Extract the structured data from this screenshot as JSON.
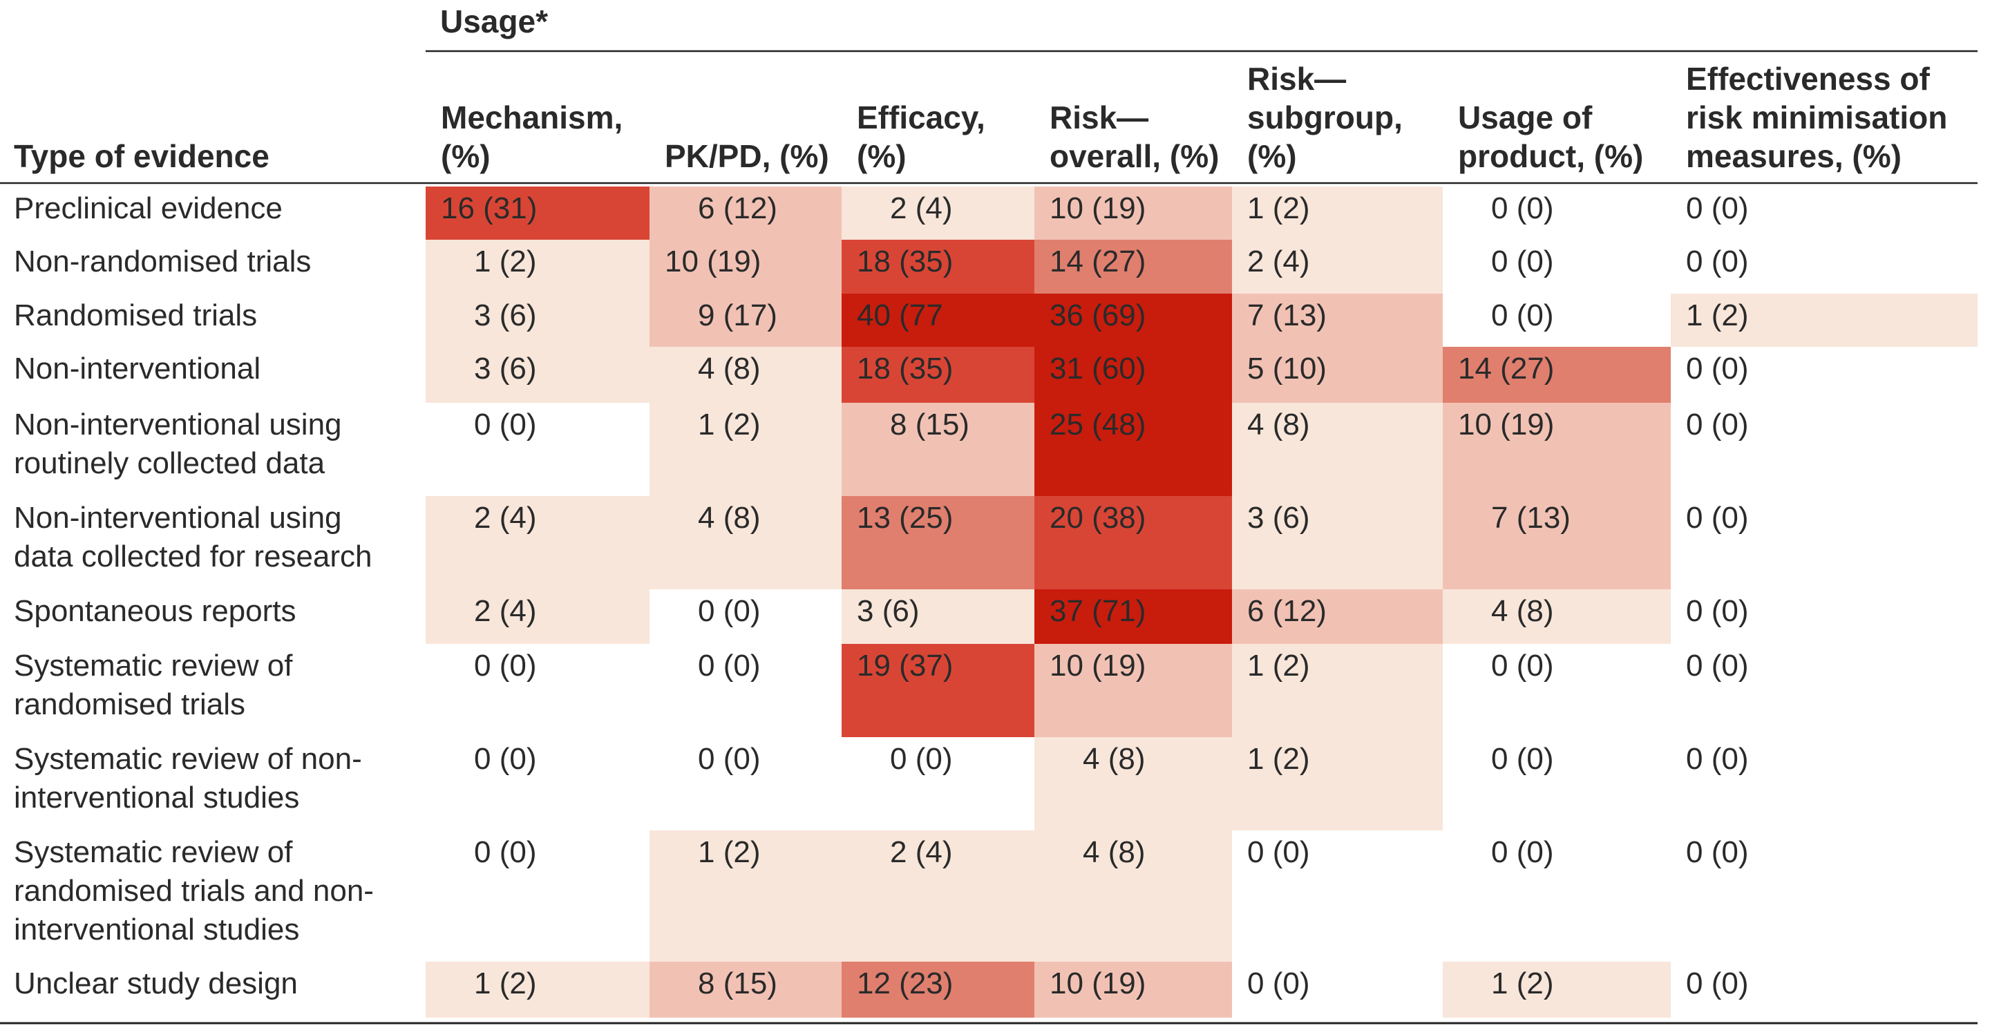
{
  "chart_data": {
    "type": "heatmap",
    "group_header": "Usage*",
    "row_header": "Type of evidence",
    "columns": [
      [
        "Mechanism,",
        "(%)"
      ],
      [
        "PK/PD, (%)"
      ],
      [
        "Efficacy,",
        "(%)"
      ],
      [
        "Risk—",
        "overall, (%)"
      ],
      [
        "Risk—",
        "subgroup,",
        "(%)"
      ],
      [
        "Usage of",
        "product, (%)"
      ],
      [
        "Effectiveness of",
        "risk minimisation",
        "measures, (%)"
      ]
    ],
    "rows": [
      [
        "Preclinical evidence"
      ],
      [
        "Non-randomised trials"
      ],
      [
        "Randomised trials"
      ],
      [
        "Non-interventional"
      ],
      [
        "Non-interventional using",
        "routinely collected data"
      ],
      [
        "Non-interventional using",
        "data collected for research"
      ],
      [
        "Spontaneous reports"
      ],
      [
        "Systematic review of",
        "randomised trials"
      ],
      [
        "Systematic review of non-",
        "interventional studies"
      ],
      [
        "Systematic review of",
        "randomised trials and non-",
        "interventional studies"
      ],
      [
        "Unclear study design"
      ]
    ],
    "values": [
      [
        16,
        6,
        2,
        10,
        1,
        0,
        0
      ],
      [
        1,
        10,
        18,
        14,
        2,
        0,
        0
      ],
      [
        3,
        9,
        40,
        36,
        7,
        0,
        1
      ],
      [
        3,
        4,
        18,
        31,
        5,
        14,
        0
      ],
      [
        0,
        1,
        8,
        25,
        4,
        10,
        0
      ],
      [
        2,
        4,
        13,
        20,
        3,
        7,
        0
      ],
      [
        2,
        0,
        3,
        37,
        6,
        4,
        0
      ],
      [
        0,
        0,
        19,
        10,
        1,
        0,
        0
      ],
      [
        0,
        0,
        0,
        4,
        1,
        0,
        0
      ],
      [
        0,
        1,
        2,
        4,
        0,
        0,
        0
      ],
      [
        1,
        8,
        12,
        10,
        0,
        1,
        0
      ]
    ],
    "cell_text": [
      [
        "16 (31)",
        "6 (12)",
        "2 (4)",
        "10 (19)",
        "1 (2)",
        "0 (0)",
        "0 (0)"
      ],
      [
        "1 (2)",
        "10 (19)",
        "18 (35)",
        "14 (27)",
        "2 (4)",
        "0 (0)",
        "0 (0)"
      ],
      [
        "3 (6)",
        "9 (17)",
        "40 (77",
        "36 (69)",
        "7 (13)",
        "0 (0)",
        "1 (2)"
      ],
      [
        "3 (6)",
        "4 (8)",
        "18 (35)",
        "31 (60)",
        "5 (10)",
        "14 (27)",
        "0 (0)"
      ],
      [
        "0 (0)",
        "1 (2)",
        "8 (15)",
        "25 (48)",
        "4 (8)",
        "10 (19)",
        "0 (0)"
      ],
      [
        "2 (4)",
        "4 (8)",
        "13 (25)",
        "20 (38)",
        "3 (6)",
        "7 (13)",
        "0 (0)"
      ],
      [
        "2 (4)",
        "0 (0)",
        "3 (6)",
        "37 (71)",
        "6 (12)",
        "4 (8)",
        "0 (0)"
      ],
      [
        "0 (0)",
        "0 (0)",
        "19 (37)",
        "10 (19)",
        "1 (2)",
        "0 (0)",
        "0 (0)"
      ],
      [
        "0 (0)",
        "0 (0)",
        "0 (0)",
        "4 (8)",
        "1 (2)",
        "0 (0)",
        "0 (0)"
      ],
      [
        "0 (0)",
        "1 (2)",
        "2 (4)",
        "4 (8)",
        "0 (0)",
        "0 (0)",
        "0 (0)"
      ],
      [
        "1 (2)",
        "8 (15)",
        "12 (23)",
        "10 (19)",
        "0 (0)",
        "1 (2)",
        "0 (0)"
      ]
    ],
    "text_indented": [
      [
        false,
        true,
        true,
        false,
        false,
        true,
        false
      ],
      [
        true,
        false,
        false,
        false,
        false,
        true,
        false
      ],
      [
        true,
        true,
        false,
        false,
        false,
        true,
        false
      ],
      [
        true,
        true,
        false,
        false,
        false,
        false,
        false
      ],
      [
        true,
        true,
        true,
        false,
        false,
        false,
        false
      ],
      [
        true,
        true,
        false,
        false,
        false,
        true,
        false
      ],
      [
        true,
        true,
        false,
        false,
        false,
        true,
        false
      ],
      [
        true,
        true,
        false,
        false,
        false,
        true,
        false
      ],
      [
        true,
        true,
        true,
        true,
        false,
        true,
        false
      ],
      [
        true,
        true,
        true,
        true,
        false,
        true,
        false
      ],
      [
        true,
        true,
        false,
        false,
        false,
        true,
        false
      ]
    ],
    "color_scale": [
      {
        "min": 0,
        "max": 0,
        "color": "#ffffff"
      },
      {
        "min": 1,
        "max": 4,
        "color": "#f8e6da"
      },
      {
        "min": 5,
        "max": 10,
        "color": "#f1c2b4"
      },
      {
        "min": 11,
        "max": 14,
        "color": "#e07f6e"
      },
      {
        "min": 15,
        "max": 20,
        "color": "#d94535"
      },
      {
        "min": 21,
        "max": 99,
        "color": "#c81c0d"
      }
    ]
  }
}
